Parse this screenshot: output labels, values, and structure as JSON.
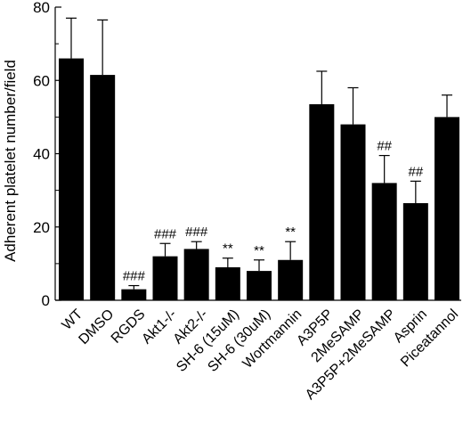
{
  "chart_data": {
    "type": "bar",
    "ylabel": "Adherent platelet number/field",
    "xlabel": "",
    "title": "",
    "ylim": [
      0,
      80
    ],
    "yticks": [
      0,
      20,
      40,
      60,
      80
    ],
    "grid": false,
    "categories": [
      "WT",
      "DMSO",
      "RGDS",
      "Akt1-/-",
      "Akt2-/-",
      "SH-6 (15uM)",
      "SH-6 (30uM)",
      "Wortmannin",
      "A3P5P",
      "2MeSAMP",
      "A3P5P+2MeSAMP",
      "Asprin",
      "Piceatannol"
    ],
    "values": [
      66,
      61.5,
      3,
      12,
      14,
      9,
      8,
      11,
      53.5,
      48,
      32,
      26.5,
      50
    ],
    "errors": [
      11,
      15,
      1,
      3.5,
      2,
      2.5,
      3,
      5,
      9,
      10,
      7.5,
      6,
      6
    ],
    "annotations": [
      "",
      "",
      "###",
      "###",
      "###",
      "**",
      "**",
      "**",
      "",
      "",
      "##",
      "##",
      ""
    ],
    "bar_color": "#000000"
  }
}
